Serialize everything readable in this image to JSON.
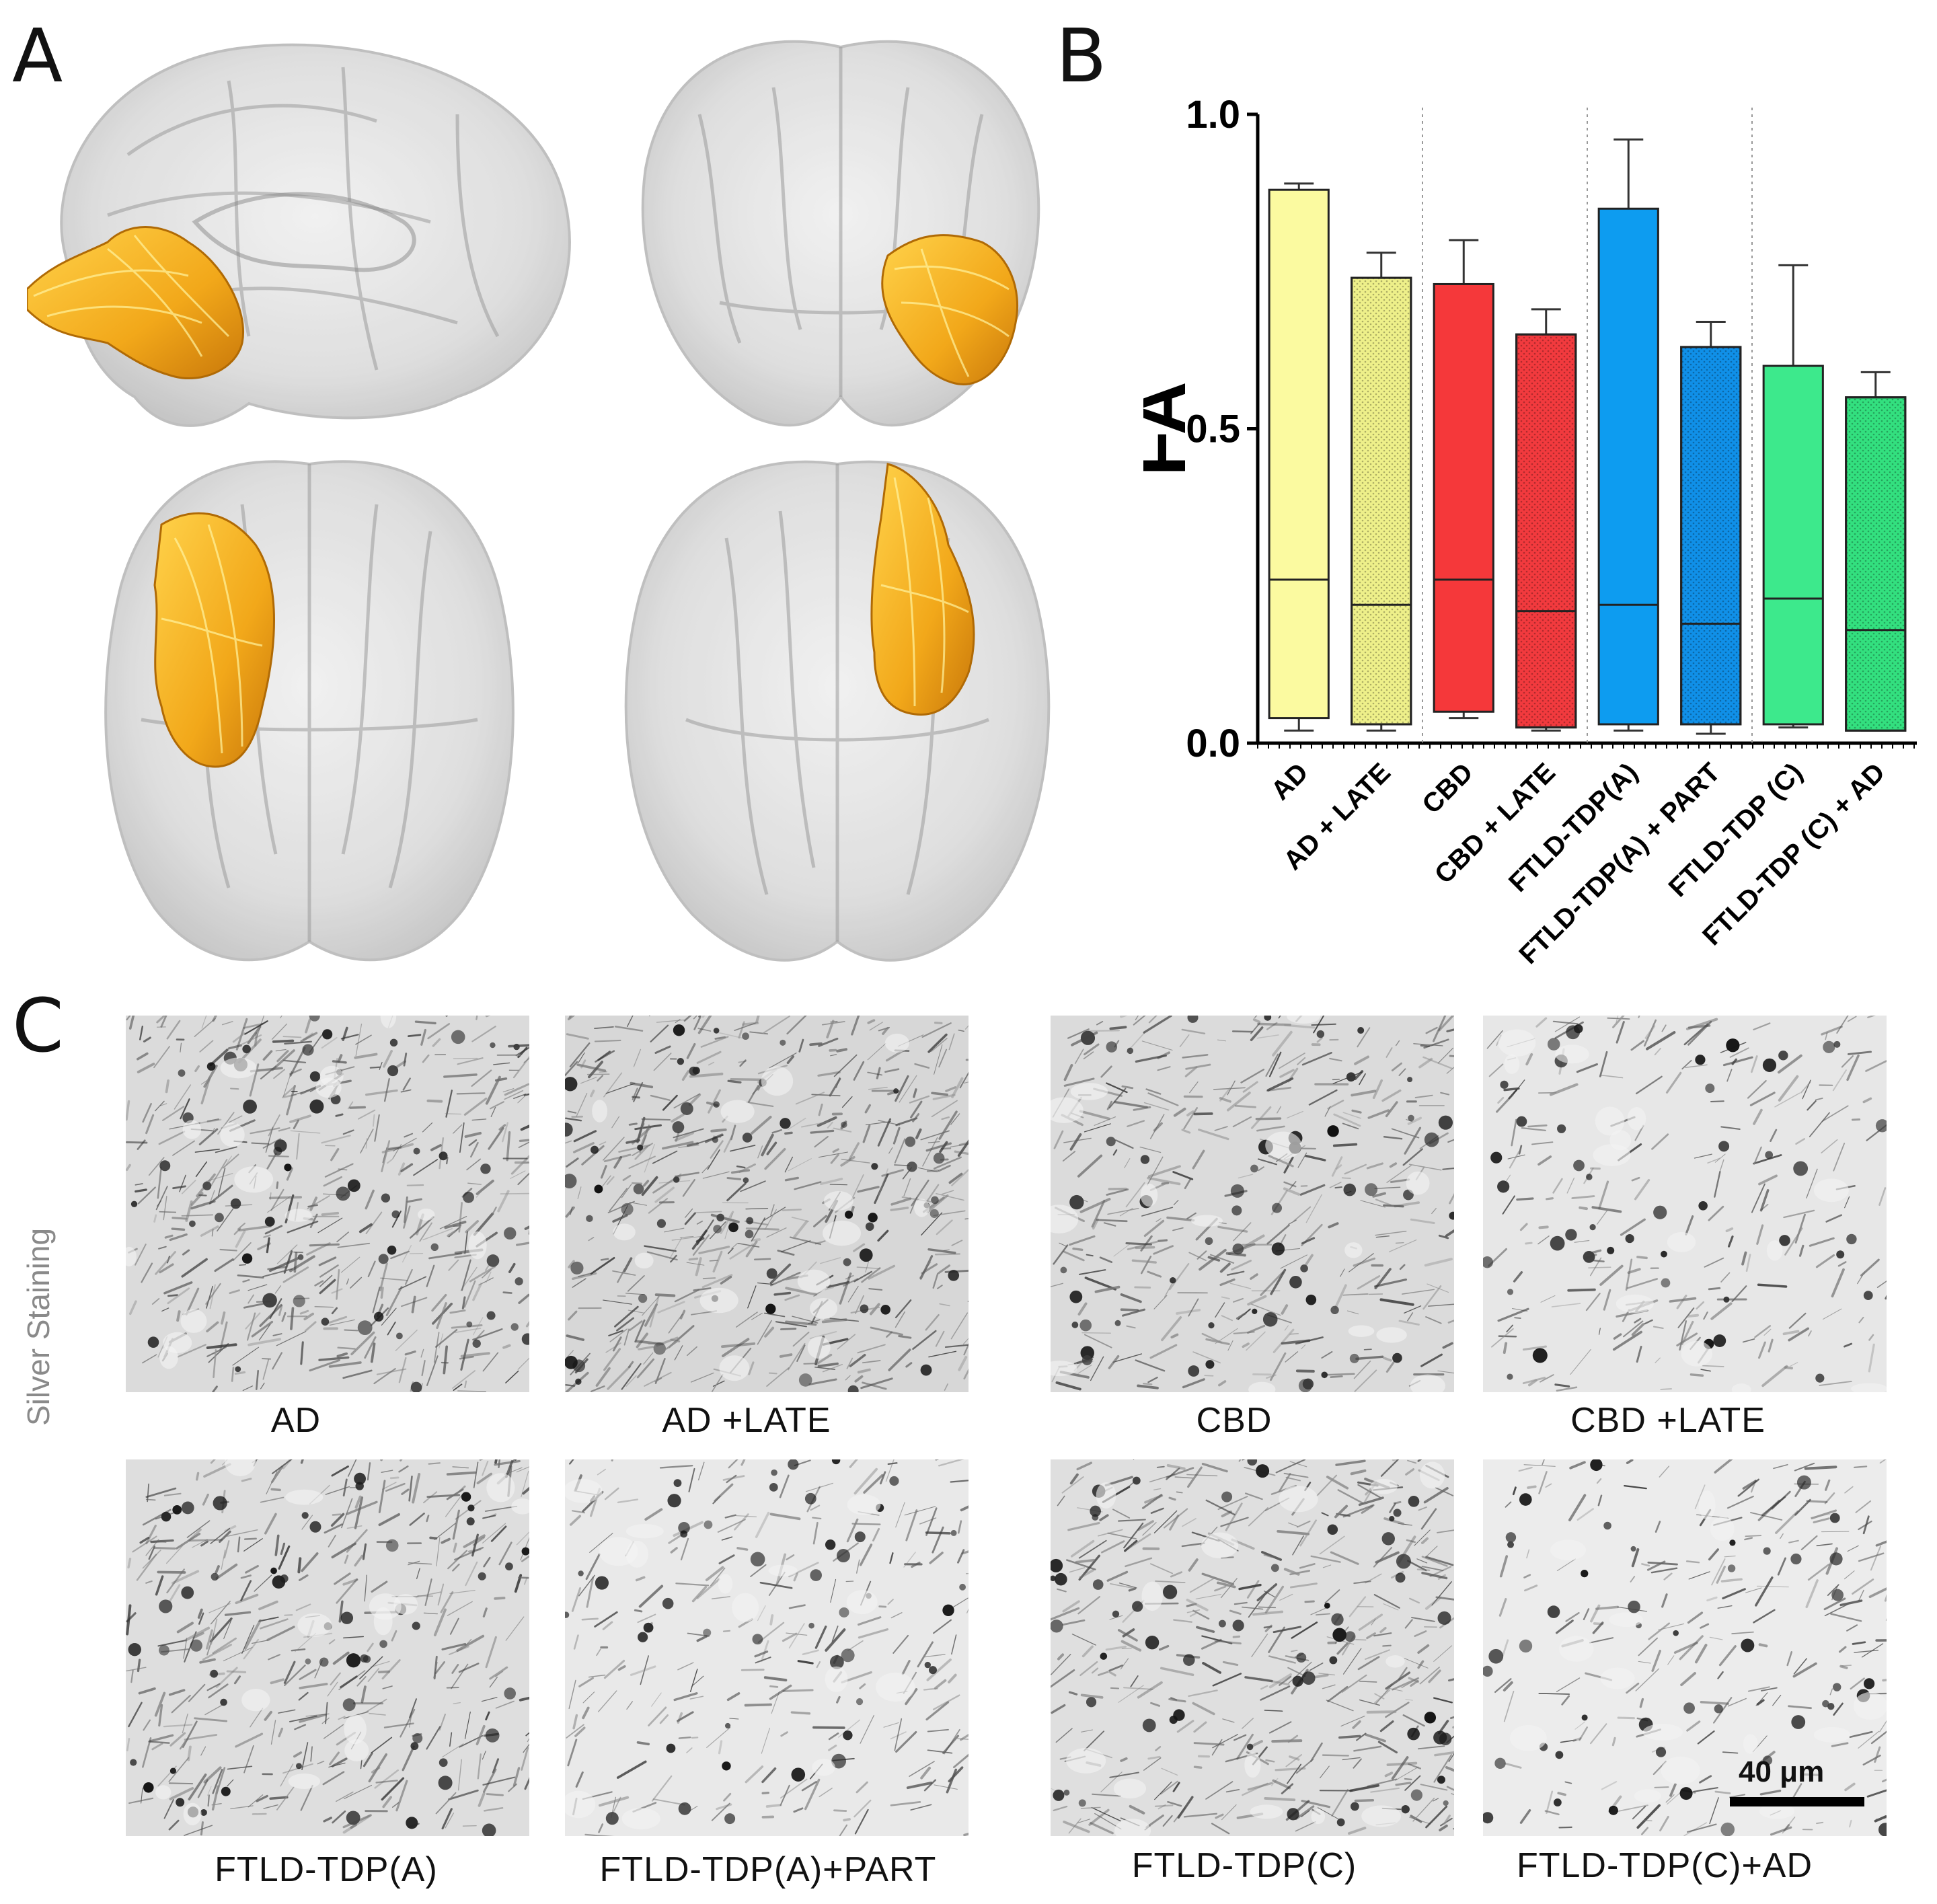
{
  "panels": {
    "a": "A",
    "b": "B",
    "c": "C"
  },
  "brain_views": [
    {
      "name": "lateral-view",
      "tract_side": "left"
    },
    {
      "name": "coronal-view",
      "tract_side": "right"
    },
    {
      "name": "superior-view",
      "tract_side": "left"
    },
    {
      "name": "inferior-view",
      "tract_side": "right"
    }
  ],
  "colors": {
    "tract": "#f2a81a",
    "brain": "#d4d4d4",
    "AD": "#fbfaa0",
    "CBD": "#f5383a",
    "FTLD-TDP(A)": "#0d9cf0",
    "FTLD-TDP(C)": "#3de98c"
  },
  "chart_data": {
    "type": "box",
    "ylabel": "FA",
    "ylim": [
      0,
      1.0
    ],
    "yticks": [
      0.0,
      0.5,
      1.0
    ],
    "ytick_labels": [
      "0.0",
      "0.5",
      "1.0"
    ],
    "categories": [
      "AD",
      "AD + LATE",
      "CBD",
      "CBD + LATE",
      "FTLD-TDP(A)",
      "FTLD-TDP(A) + PART",
      "FTLD-TDP (C)",
      "FTLD-TDP (C) + AD"
    ],
    "series": [
      {
        "name": "AD",
        "color": "#fbfaa0",
        "pattern": false,
        "min": 0.02,
        "q1": 0.04,
        "median": 0.26,
        "q3": 0.88,
        "max": 0.89
      },
      {
        "name": "AD + LATE",
        "color": "#eef08a",
        "pattern": true,
        "min": 0.02,
        "q1": 0.03,
        "median": 0.22,
        "q3": 0.74,
        "max": 0.78
      },
      {
        "name": "CBD",
        "color": "#f5383a",
        "pattern": false,
        "min": 0.04,
        "q1": 0.05,
        "median": 0.26,
        "q3": 0.73,
        "max": 0.8
      },
      {
        "name": "CBD + LATE",
        "color": "#f23a3e",
        "pattern": true,
        "min": 0.02,
        "q1": 0.025,
        "median": 0.21,
        "q3": 0.65,
        "max": 0.69
      },
      {
        "name": "FTLD-TDP(A)",
        "color": "#0d9cf0",
        "pattern": false,
        "min": 0.02,
        "q1": 0.03,
        "median": 0.22,
        "q3": 0.85,
        "max": 0.96
      },
      {
        "name": "FTLD-TDP(A) + PART",
        "color": "#1090e8",
        "pattern": true,
        "min": 0.015,
        "q1": 0.03,
        "median": 0.19,
        "q3": 0.63,
        "max": 0.67
      },
      {
        "name": "FTLD-TDP (C)",
        "color": "#3de98c",
        "pattern": false,
        "min": 0.025,
        "q1": 0.03,
        "median": 0.23,
        "q3": 0.6,
        "max": 0.76
      },
      {
        "name": "FTLD-TDP (C) + AD",
        "color": "#33e07f",
        "pattern": true,
        "min": 0.02,
        "q1": 0.02,
        "median": 0.18,
        "q3": 0.55,
        "max": 0.59
      }
    ],
    "group_separators_after": [
      1,
      3,
      5
    ]
  },
  "micrographs": {
    "side_label": "Silver Staining",
    "scale_bar_text": "40 μm",
    "items": [
      {
        "label": "AD",
        "density": 0.95,
        "fiber_angle": -40,
        "tone": 0.55
      },
      {
        "label": "AD +LATE",
        "density": 1.0,
        "fiber_angle": -30,
        "tone": 0.5
      },
      {
        "label": "CBD",
        "density": 0.75,
        "fiber_angle": -20,
        "tone": 0.55
      },
      {
        "label": "CBD +LATE",
        "density": 0.45,
        "fiber_angle": -35,
        "tone": 0.75
      },
      {
        "label": "FTLD-TDP(A)",
        "density": 0.8,
        "fiber_angle": -40,
        "tone": 0.6
      },
      {
        "label": "FTLD-TDP(A)+PART",
        "density": 0.5,
        "fiber_angle": -35,
        "tone": 0.78
      },
      {
        "label": "FTLD-TDP(C)",
        "density": 0.85,
        "fiber_angle": -15,
        "tone": 0.62
      },
      {
        "label": "FTLD-TDP(C)+AD",
        "density": 0.45,
        "fiber_angle": -30,
        "tone": 0.82
      }
    ]
  }
}
